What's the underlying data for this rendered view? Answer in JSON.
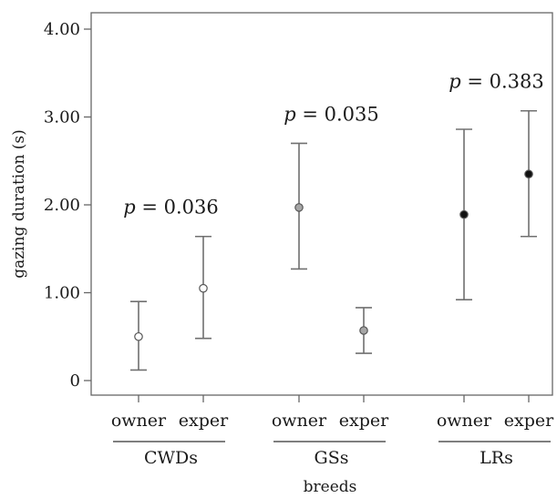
{
  "chart_data": {
    "type": "scatter",
    "title": "",
    "xlabel": "breeds",
    "ylabel": "gazing duration (s)",
    "ylim": [
      -0.15,
      4.2
    ],
    "yticks": [
      0,
      1.0,
      2.0,
      3.0,
      4.0
    ],
    "ytick_labels": [
      "0",
      "1.00",
      "2.00",
      "3.00",
      "4.00"
    ],
    "grid": false,
    "groups": [
      {
        "name": "CWDs",
        "p_prefix": "p",
        "p_value": "= 0.036",
        "marker_color": "#ffffff",
        "points": [
          {
            "label": "owner",
            "mean": 0.5,
            "lower": 0.12,
            "upper": 0.9
          },
          {
            "label": "exper",
            "mean": 1.05,
            "lower": 0.48,
            "upper": 1.64
          }
        ]
      },
      {
        "name": "GSs",
        "p_prefix": "p",
        "p_value": "= 0.035",
        "marker_color": "#a6a6a6",
        "points": [
          {
            "label": "owner",
            "mean": 1.97,
            "lower": 1.27,
            "upper": 2.7
          },
          {
            "label": "exper",
            "mean": 0.57,
            "lower": 0.31,
            "upper": 0.83
          }
        ]
      },
      {
        "name": "LRs",
        "p_prefix": "p",
        "p_value": "= 0.383",
        "marker_color": "#111111",
        "points": [
          {
            "label": "owner",
            "mean": 1.89,
            "lower": 0.92,
            "upper": 2.86
          },
          {
            "label": "exper",
            "mean": 2.35,
            "lower": 1.64,
            "upper": 3.07
          }
        ]
      }
    ]
  }
}
